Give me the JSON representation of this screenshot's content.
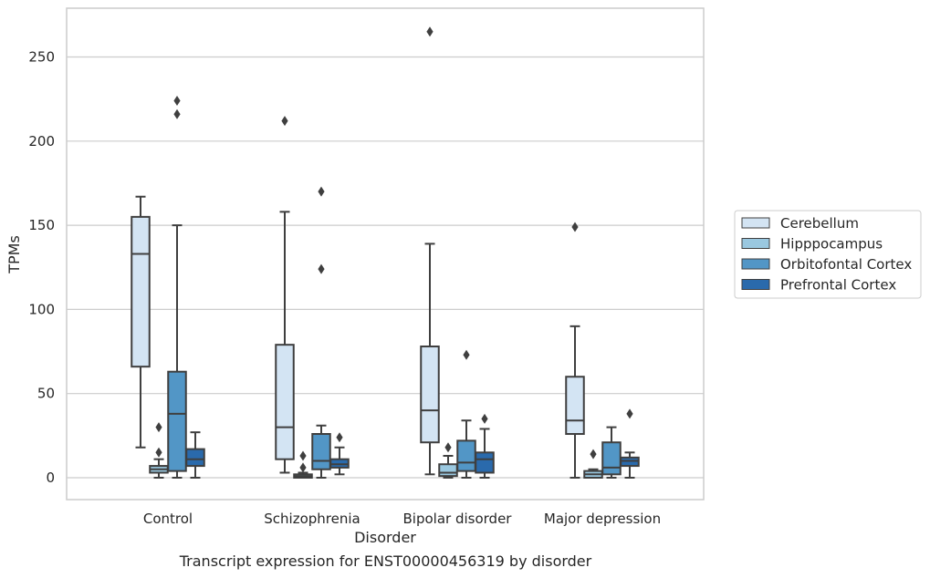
{
  "chart_data": {
    "type": "box",
    "xlabel": "Disorder",
    "ylabel": "TPMs",
    "ylim": [
      -13,
      279
    ],
    "yticks": [
      0,
      50,
      100,
      150,
      200,
      250
    ],
    "grid": "horizontal",
    "legend_placement": "right",
    "categories": [
      "Control",
      "Schizophrenia",
      "Bipolar disorder",
      "Major depression"
    ],
    "series": [
      {
        "name": "Cerebellum",
        "color": "#d3e4f3",
        "boxes": [
          {
            "whislo": 18,
            "q1": 66,
            "med": 133,
            "q3": 155,
            "whishi": 167,
            "fliers": []
          },
          {
            "whislo": 3,
            "q1": 11,
            "med": 30,
            "q3": 79,
            "whishi": 158,
            "fliers": [
              212
            ]
          },
          {
            "whislo": 2,
            "q1": 21,
            "med": 40,
            "q3": 78,
            "whishi": 139,
            "fliers": [
              265
            ]
          },
          {
            "whislo": 0,
            "q1": 26,
            "med": 34,
            "q3": 60,
            "whishi": 90,
            "fliers": [
              149
            ]
          }
        ]
      },
      {
        "name": "Hipppocampus",
        "color": "#9ac8e0",
        "boxes": [
          {
            "whislo": 0,
            "q1": 3,
            "med": 5,
            "q3": 7,
            "whishi": 11,
            "fliers": [
              15,
              30
            ]
          },
          {
            "whislo": 0,
            "q1": 0,
            "med": 1,
            "q3": 2,
            "whishi": 3,
            "fliers": [
              6,
              13
            ]
          },
          {
            "whislo": 0,
            "q1": 1,
            "med": 3,
            "q3": 8,
            "whishi": 13,
            "fliers": [
              18
            ]
          },
          {
            "whislo": 0,
            "q1": 0,
            "med": 2,
            "q3": 4,
            "whishi": 5,
            "fliers": [
              14
            ]
          }
        ]
      },
      {
        "name": "Orbitofontal Cortex",
        "color": "#5296c6",
        "boxes": [
          {
            "whislo": 0,
            "q1": 4,
            "med": 38,
            "q3": 63,
            "whishi": 150,
            "fliers": [
              216,
              224
            ]
          },
          {
            "whislo": 0,
            "q1": 5,
            "med": 10,
            "q3": 26,
            "whishi": 31,
            "fliers": [
              124,
              170
            ]
          },
          {
            "whislo": 0,
            "q1": 4,
            "med": 9,
            "q3": 22,
            "whishi": 34,
            "fliers": [
              73
            ]
          },
          {
            "whislo": 0,
            "q1": 2,
            "med": 6,
            "q3": 21,
            "whishi": 30,
            "fliers": []
          }
        ]
      },
      {
        "name": "Prefrontal Cortex",
        "color": "#2a6aac",
        "boxes": [
          {
            "whislo": 0,
            "q1": 7,
            "med": 11,
            "q3": 17,
            "whishi": 27,
            "fliers": []
          },
          {
            "whislo": 2,
            "q1": 6,
            "med": 8,
            "q3": 11,
            "whishi": 18,
            "fliers": [
              24
            ]
          },
          {
            "whislo": 0,
            "q1": 3,
            "med": 11,
            "q3": 15,
            "whishi": 29,
            "fliers": [
              35
            ]
          },
          {
            "whislo": 0,
            "q1": 7,
            "med": 10,
            "q3": 12,
            "whishi": 15,
            "fliers": [
              38
            ]
          }
        ]
      }
    ]
  },
  "caption": "Transcript expression for ENST00000456319 by disorder"
}
